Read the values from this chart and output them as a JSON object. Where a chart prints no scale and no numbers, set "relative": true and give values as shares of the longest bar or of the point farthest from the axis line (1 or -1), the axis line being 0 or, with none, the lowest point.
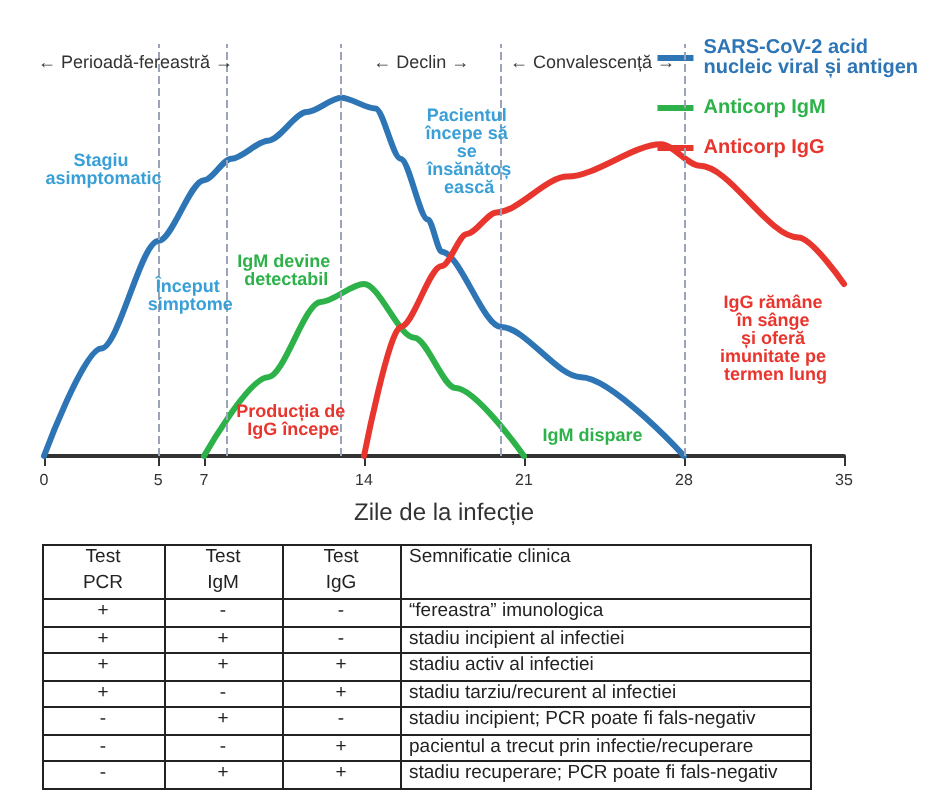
{
  "chart_data": [
    {
      "type": "line",
      "relative": true,
      "xlabel": "Zile de la infecție",
      "xlim": [
        0,
        35
      ],
      "xticks": [
        0,
        5,
        7,
        14,
        21,
        28,
        35
      ],
      "legend": "top right",
      "grid": false,
      "marker": "none",
      "line_style": "solid",
      "series": [
        {
          "name": "SARS-CoV-2 acid nucleic viral și antigen",
          "color": "#2e75b6",
          "x": [
            0,
            2.5,
            5,
            7,
            8.2,
            9.8,
            11.5,
            13,
            14.5,
            15.6,
            16.8,
            17.4,
            20,
            23.5,
            28
          ],
          "values": [
            0,
            0.3,
            0.6,
            0.77,
            0.83,
            0.88,
            0.96,
            1,
            0.97,
            0.83,
            0.66,
            0.57,
            0.36,
            0.22,
            0
          ]
        },
        {
          "name": "Anticorp IgM",
          "color": "#2db24a",
          "x": [
            7,
            9.8,
            12.1,
            14,
            16.2,
            18,
            21
          ],
          "values": [
            0,
            0.22,
            0.43,
            0.48,
            0.33,
            0.19,
            0
          ]
        },
        {
          "name": "Anticorp IgG",
          "color": "#e8352e",
          "x": [
            14,
            15.6,
            17.4,
            18.5,
            19.8,
            22.9,
            27,
            28.7,
            33,
            35
          ],
          "values": [
            0,
            0.36,
            0.53,
            0.62,
            0.68,
            0.78,
            0.87,
            0.81,
            0.61,
            0.48
          ]
        }
      ],
      "ref_lines": [
        {
          "axis": "x",
          "value": 5,
          "line_style": "dashed",
          "color": "#9aa6b8"
        },
        {
          "axis": "x",
          "value": 8,
          "line_style": "dashed",
          "color": "#9aa6b8"
        },
        {
          "axis": "x",
          "value": 13,
          "line_style": "dashed",
          "color": "#9aa6b8"
        },
        {
          "axis": "x",
          "value": 20,
          "line_style": "dashed",
          "color": "#9aa6b8"
        },
        {
          "axis": "x",
          "value": 28,
          "line_style": "dashed",
          "color": "#9aa6b8"
        }
      ],
      "annotations": [
        "← Perioadă-fereastră →",
        "← Declin →",
        "← Convalescență →",
        "Stagiu asimptomatic",
        "Început simptome",
        "IgM devine detectabil",
        "Pacientul începe să se însănătoșească",
        "Producția de IgG începe",
        "IgM dispare",
        "IgG rămâne în sânge și oferă imunitate pe termen lung"
      ]
    },
    {
      "type": "other",
      "annotations": [
        "Test PCR",
        "Test IgM",
        "Test IgG",
        "Semnificatie clinica",
        "+",
        "-",
        "-",
        "“fereastra” imunologica",
        "+",
        "+",
        "-",
        "stadiu incipient al infectiei",
        "+",
        "+",
        "+",
        "stadiu activ al infectiei",
        "+",
        "-",
        "+",
        "stadiu tarziu/recurent al infectiei",
        "-",
        "+",
        "-",
        "stadiu incipient; PCR poate fi fals-negativ",
        "-",
        "-",
        "+",
        "pacientul a trecut prin infectie/recuperare",
        "-",
        "+",
        "+",
        "stadiu recuperare; PCR poate fi fals-negativ"
      ]
    }
  ]
}
